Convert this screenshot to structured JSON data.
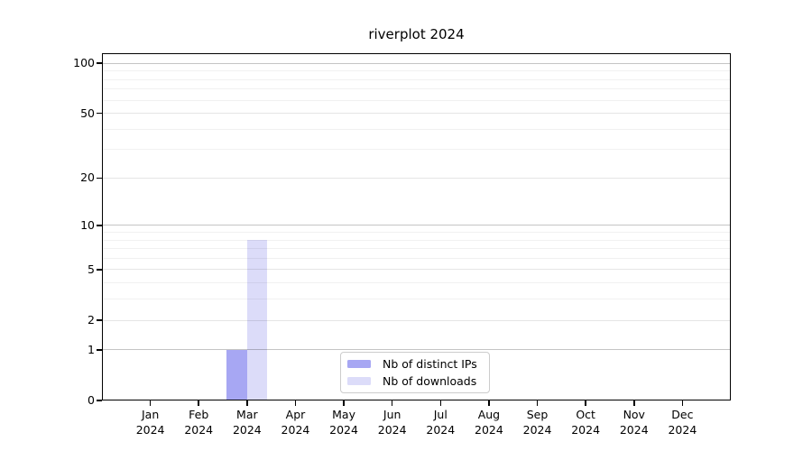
{
  "chart_data": {
    "type": "bar",
    "title": "riverplot 2024",
    "categories": [
      "Jan",
      "Feb",
      "Mar",
      "Apr",
      "May",
      "Jun",
      "Jul",
      "Aug",
      "Sep",
      "Oct",
      "Nov",
      "Dec"
    ],
    "category_year": "2024",
    "series": [
      {
        "name": "Nb of distinct IPs",
        "color": "#a7a7f3",
        "values": [
          0,
          0,
          1,
          0,
          0,
          0,
          0,
          0,
          0,
          0,
          0,
          0
        ]
      },
      {
        "name": "Nb of downloads",
        "color": "#dcdcf9",
        "values": [
          0,
          0,
          8,
          0,
          0,
          0,
          0,
          0,
          0,
          0,
          0,
          0
        ]
      }
    ],
    "xlabel": "",
    "ylabel": "",
    "y_scale": "log10(1+x)",
    "y_ticks": [
      0,
      1,
      2,
      5,
      10,
      20,
      50,
      100
    ],
    "y_major_emphasis": [
      1,
      10,
      100
    ],
    "y_minor_gridlines": [
      3,
      4,
      6,
      7,
      8,
      9,
      30,
      40,
      60,
      70,
      80,
      90
    ],
    "ylim": [
      0,
      115
    ],
    "grid": true,
    "legend_position": "lower center"
  }
}
